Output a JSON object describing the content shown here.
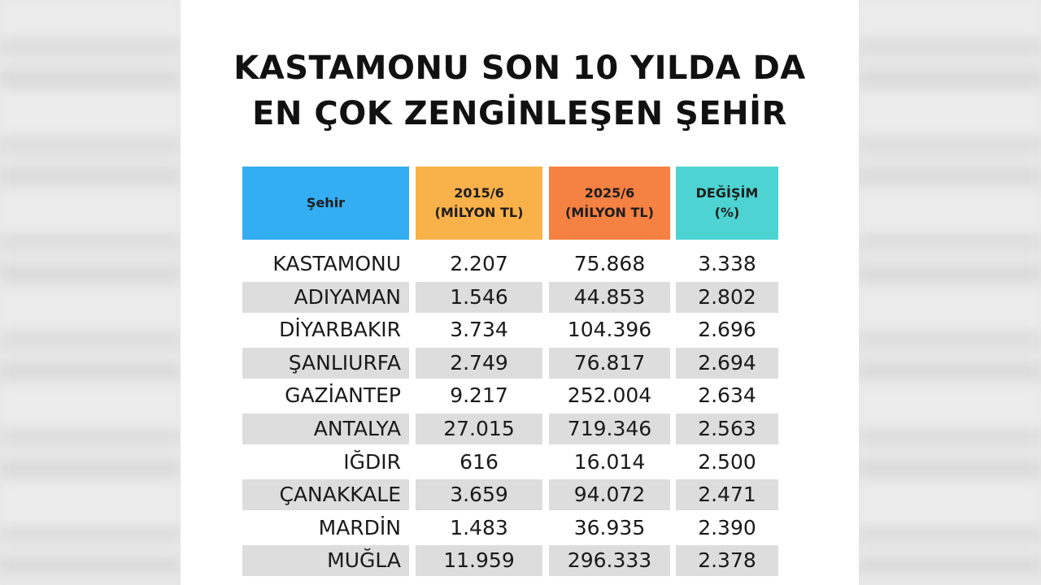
{
  "title_lines": [
    "KASTAMONU SON 10 YILDA DA",
    "EN ÇOK ZENGİNLEŞEN ŞEHİR"
  ],
  "headers": {
    "city": "Şehir",
    "y2015": [
      "2015/6",
      "(MİLYON TL)"
    ],
    "y2025": [
      "2025/6",
      "(MİLYON TL)"
    ],
    "change": [
      "DEĞİŞİM",
      "(%)"
    ]
  },
  "colors": {
    "city_header": "#33aef2",
    "y2015_header": "#f9b14a",
    "y2025_header": "#f58142",
    "change_header": "#4dd4d2",
    "row_shade": "#dddddd"
  },
  "rows": [
    {
      "city": "KASTAMONU",
      "y2015": "2.207",
      "y2025": "75.868",
      "change": "3.338"
    },
    {
      "city": "ADIYAMAN",
      "y2015": "1.546",
      "y2025": "44.853",
      "change": "2.802"
    },
    {
      "city": "DİYARBAKIR",
      "y2015": "3.734",
      "y2025": "104.396",
      "change": "2.696"
    },
    {
      "city": "ŞANLIURFA",
      "y2015": "2.749",
      "y2025": "76.817",
      "change": "2.694"
    },
    {
      "city": "GAZİANTEP",
      "y2015": "9.217",
      "y2025": "252.004",
      "change": "2.634"
    },
    {
      "city": "ANTALYA",
      "y2015": "27.015",
      "y2025": "719.346",
      "change": "2.563"
    },
    {
      "city": "IĞDIR",
      "y2015": "616",
      "y2025": "16.014",
      "change": "2.500"
    },
    {
      "city": "ÇANAKKALE",
      "y2015": "3.659",
      "y2025": "94.072",
      "change": "2.471"
    },
    {
      "city": "MARDİN",
      "y2015": "1.483",
      "y2025": "36.935",
      "change": "2.390"
    },
    {
      "city": "MUĞLA",
      "y2015": "11.959",
      "y2025": "296.333",
      "change": "2.378"
    }
  ]
}
